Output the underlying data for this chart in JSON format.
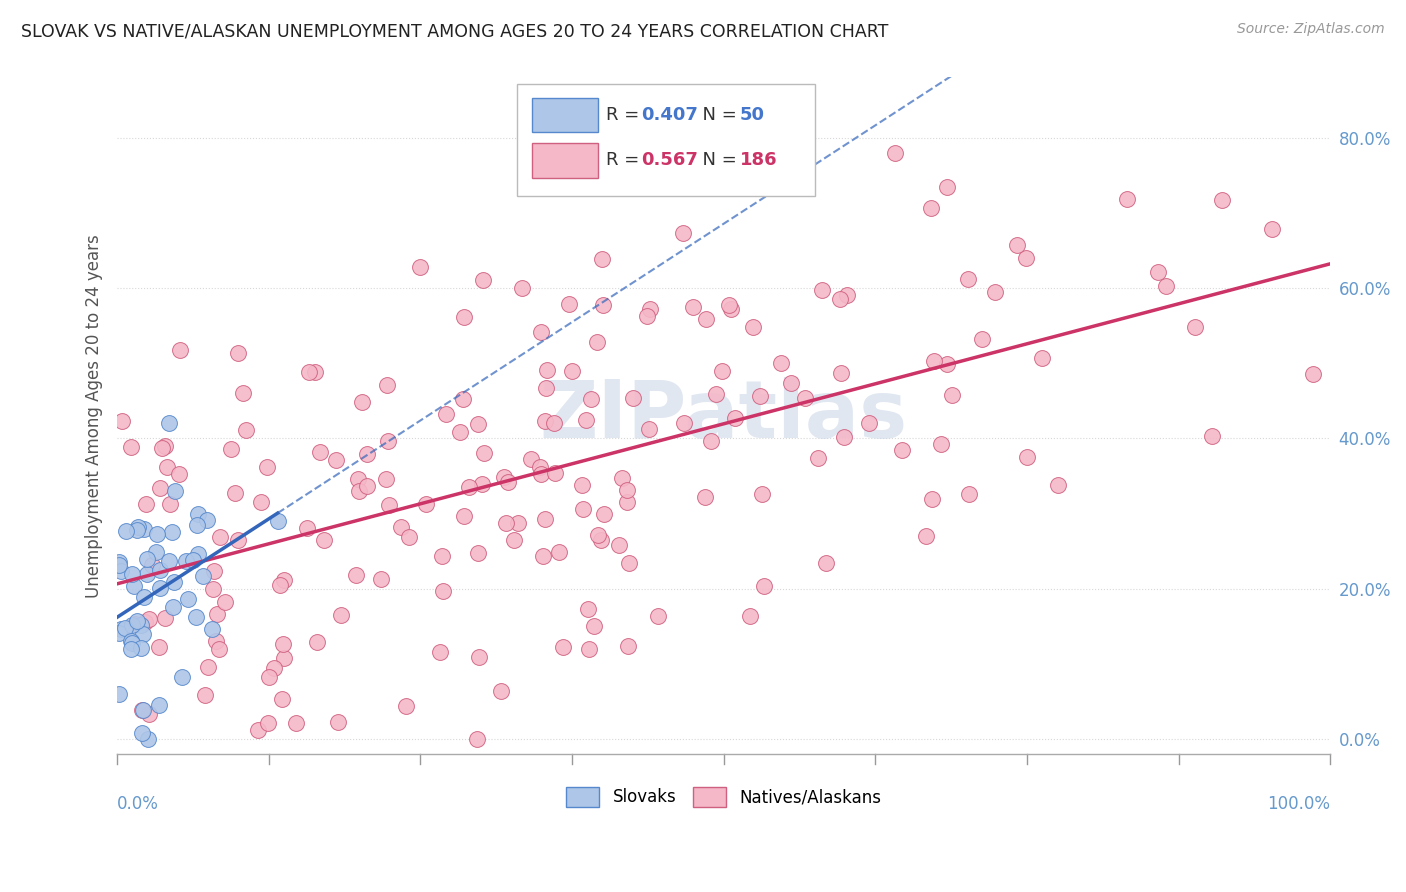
{
  "title": "SLOVAK VS NATIVE/ALASKAN UNEMPLOYMENT AMONG AGES 20 TO 24 YEARS CORRELATION CHART",
  "source": "Source: ZipAtlas.com",
  "ylabel": "Unemployment Among Ages 20 to 24 years",
  "legend_bottom": [
    "Slovaks",
    "Natives/Alaskans"
  ],
  "slovak_color": "#aec6e8",
  "native_color": "#f5b8c8",
  "slovak_edge_color": "#5588cc",
  "native_edge_color": "#d06080",
  "slovak_line_color": "#3366bb",
  "native_line_color": "#cc3366",
  "watermark_color": "#ccd8e8",
  "background_color": "#ffffff",
  "grid_color": "#d8d8d8",
  "axis_label_color": "#6699cc",
  "title_color": "#222222",
  "legend_text_color": "#333333",
  "legend_R_color": "#4477cc",
  "legend_N_color": "#cc3366",
  "slovak_R": 0.407,
  "slovak_N": 50,
  "native_R": 0.567,
  "native_N": 186,
  "xlim": [
    0.0,
    1.0
  ],
  "ylim": [
    -0.02,
    0.88
  ],
  "yticks": [
    0.0,
    0.2,
    0.4,
    0.6,
    0.8
  ],
  "ytick_labels": [
    "0.0%",
    "20.0%",
    "40.0%",
    "60.0%",
    "80.0%"
  ]
}
